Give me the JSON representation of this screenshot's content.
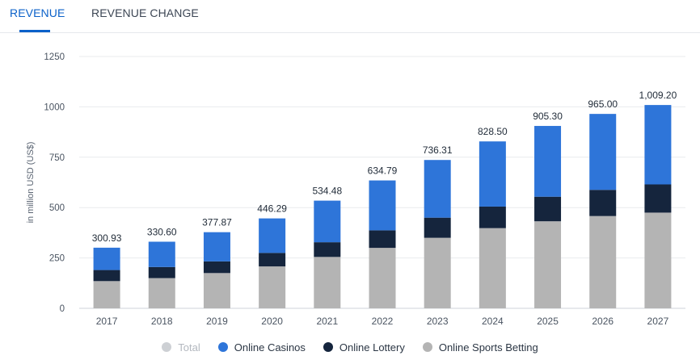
{
  "tabs": [
    {
      "label": "REVENUE",
      "active": true
    },
    {
      "label": "REVENUE CHANGE",
      "active": false
    }
  ],
  "legend": [
    {
      "label": "Total",
      "color": "#cdd0d4",
      "muted": true
    },
    {
      "label": "Online Casinos",
      "color": "#2e75d9",
      "muted": false
    },
    {
      "label": "Online Lottery",
      "color": "#15253d",
      "muted": false
    },
    {
      "label": "Online Sports Betting",
      "color": "#b4b4b4",
      "muted": false
    }
  ],
  "chart_data": {
    "type": "bar",
    "stacked": true,
    "ylabel": "in million USD (US$)",
    "ylim": [
      0,
      1250
    ],
    "yticks": [
      0,
      250,
      500,
      750,
      1000,
      1250
    ],
    "grid": true,
    "legend_position": "bottom",
    "categories": [
      "2017",
      "2018",
      "2019",
      "2020",
      "2021",
      "2022",
      "2023",
      "2024",
      "2025",
      "2026",
      "2027"
    ],
    "series": [
      {
        "name": "Online Sports Betting",
        "color": "#b4b4b4",
        "values": [
          135,
          150,
          175,
          208,
          255,
          300,
          350,
          398,
          432,
          458,
          475
        ]
      },
      {
        "name": "Online Lottery",
        "color": "#15253d",
        "values": [
          55,
          55,
          58,
          67,
          73,
          87,
          100,
          107,
          122,
          130,
          140
        ]
      },
      {
        "name": "Online Casinos",
        "color": "#2e75d9",
        "values": [
          110.93,
          125.6,
          144.87,
          171.29,
          206.48,
          247.79,
          286.31,
          323.5,
          351.3,
          377,
          394.2
        ]
      }
    ],
    "totals": [
      "300.93",
      "330.60",
      "377.87",
      "446.29",
      "534.48",
      "634.79",
      "736.31",
      "828.50",
      "905.30",
      "965.00",
      "1,009.20"
    ]
  }
}
